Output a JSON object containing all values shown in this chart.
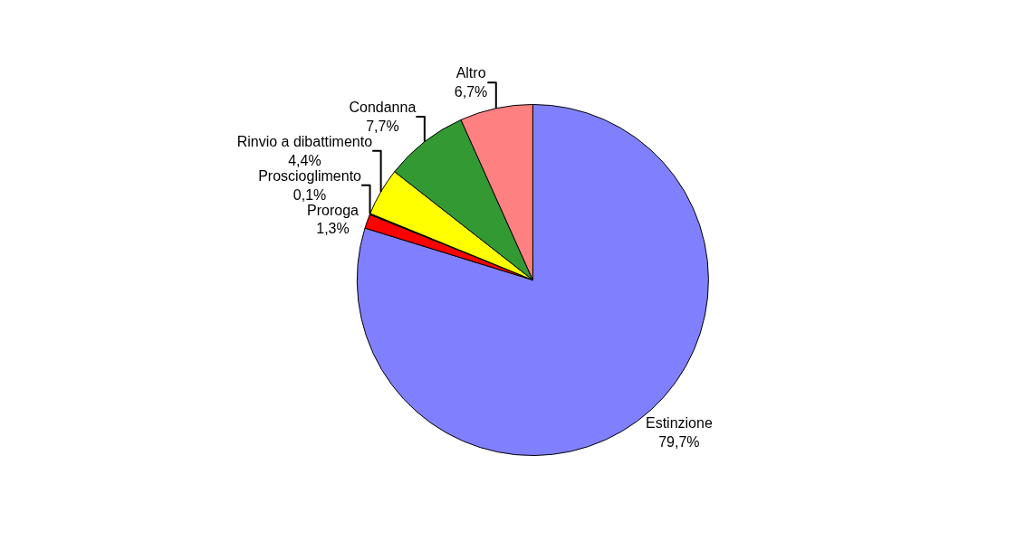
{
  "chart_data": {
    "type": "pie",
    "categories": [
      "Estinzione",
      "Proroga",
      "Proscioglimento",
      "Rinvio a dibattimento",
      "Condanna",
      "Altro"
    ],
    "values": [
      79.7,
      1.3,
      0.1,
      4.4,
      7.7,
      6.7
    ],
    "value_labels": [
      "79,7%",
      "1,3%",
      "0,1%",
      "4,4%",
      "7,7%",
      "6,7%"
    ],
    "colors": [
      "#8080ff",
      "#ff0000",
      "#000080",
      "#ffff00",
      "#339933",
      "#ff8080"
    ],
    "legend": false
  }
}
